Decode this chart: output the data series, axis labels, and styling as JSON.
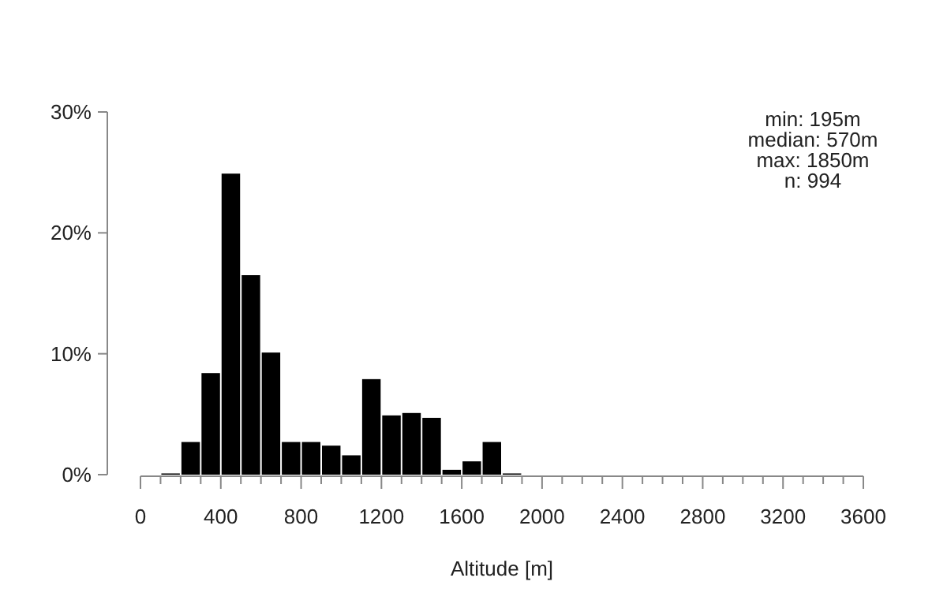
{
  "chart_data": {
    "type": "histogram",
    "xlabel": "Altitude [m]",
    "bins": [
      100,
      200,
      300,
      400,
      500,
      600,
      700,
      800,
      900,
      1000,
      1100,
      1200,
      1300,
      1400,
      1500,
      1600,
      1700,
      1800,
      1900
    ],
    "values": [
      0.1,
      2.7,
      8.4,
      24.9,
      16.5,
      10.1,
      2.7,
      2.7,
      2.4,
      1.6,
      7.9,
      4.9,
      5.1,
      4.7,
      0.4,
      1.1,
      2.7,
      0.1
    ],
    "color": "#000000",
    "xlim": [
      0,
      3600
    ],
    "xticks": [
      0,
      {
        "value": 100,
        "label": null
      },
      {
        "value": 200,
        "label": null
      },
      {
        "value": 300,
        "label": null
      },
      400,
      {
        "value": 500,
        "label": null
      },
      {
        "value": 600,
        "label": null
      },
      {
        "value": 700,
        "label": null
      },
      800,
      {
        "value": 900,
        "label": null
      },
      {
        "value": 1000,
        "label": null
      },
      {
        "value": 1100,
        "label": null
      },
      1200,
      {
        "value": 1300,
        "label": null
      },
      {
        "value": 1400,
        "label": null
      },
      {
        "value": 1500,
        "label": null
      },
      1600,
      {
        "value": 1700,
        "label": null
      },
      {
        "value": 1800,
        "label": null
      },
      {
        "value": 1900,
        "label": null
      },
      2000,
      {
        "value": 2100,
        "label": null
      },
      {
        "value": 2200,
        "label": null
      },
      {
        "value": 2300,
        "label": null
      },
      2400,
      {
        "value": 2500,
        "label": null
      },
      {
        "value": 2600,
        "label": null
      },
      {
        "value": 2700,
        "label": null
      },
      2800,
      {
        "value": 2900,
        "label": null
      },
      {
        "value": 3000,
        "label": null
      },
      {
        "value": 3100,
        "label": null
      },
      3200,
      {
        "value": 3300,
        "label": null
      },
      {
        "value": 3400,
        "label": null
      },
      {
        "value": 3500,
        "label": null
      },
      3600
    ],
    "ylim": [
      0,
      30
    ],
    "yticks": [
      {
        "value": 0,
        "label": "0%"
      },
      {
        "value": 10,
        "label": "10%"
      },
      {
        "value": 20,
        "label": "20%"
      },
      {
        "value": 30,
        "label": "30%"
      }
    ],
    "grid": false,
    "annotations": [
      "min: 195m",
      "median: 570m",
      "max: 1850m",
      "n:  994"
    ]
  }
}
